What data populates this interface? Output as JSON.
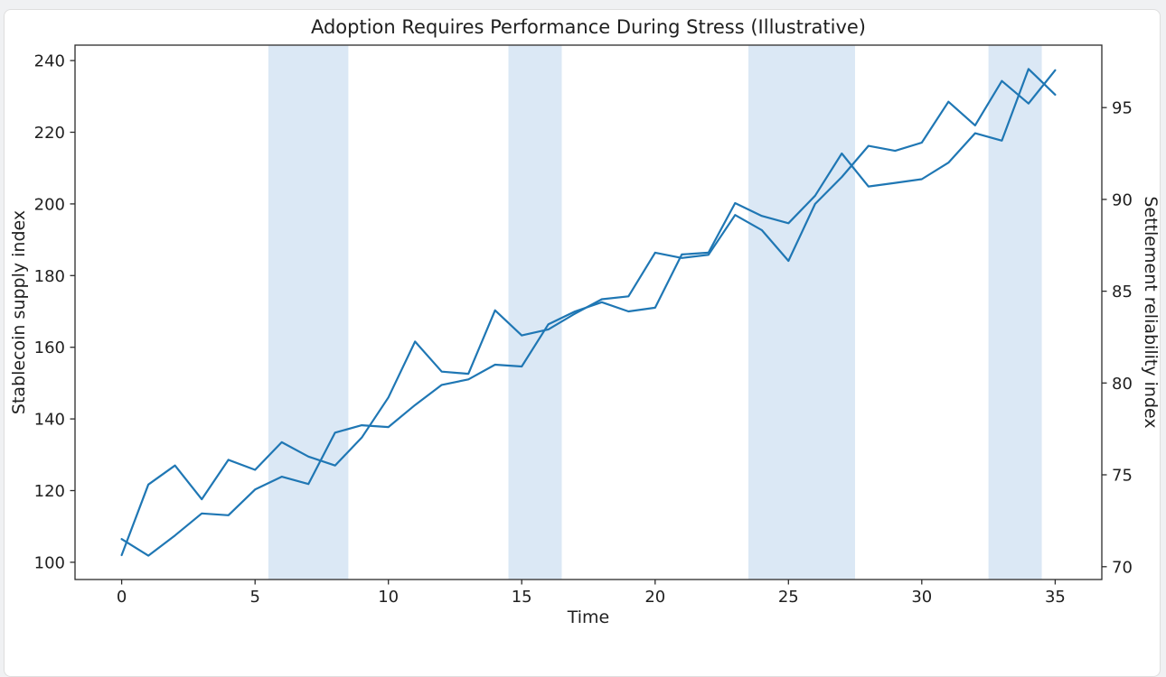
{
  "page": {
    "background": "#f0f1f3",
    "card_background": "#ffffff",
    "card_border": "#dedede"
  },
  "chart_data": {
    "type": "line",
    "title": "Adoption Requires Performance During Stress (Illustrative)",
    "xlabel": "Time",
    "ylabel_left": "Stablecoin supply index",
    "ylabel_right": "Settlement reliability index",
    "x": [
      0,
      1,
      2,
      3,
      4,
      5,
      6,
      7,
      8,
      9,
      10,
      11,
      12,
      13,
      14,
      15,
      16,
      17,
      18,
      19,
      20,
      21,
      22,
      23,
      24,
      25,
      26,
      27,
      28,
      29,
      30,
      31,
      32,
      33,
      34,
      35
    ],
    "series": [
      {
        "name": "Stablecoin supply index",
        "axis": "left",
        "color": "#1f77b4",
        "values": [
          102,
          121.7,
          127,
          117.6,
          128.6,
          125.8,
          133.5,
          129.5,
          127,
          134.8,
          146,
          161.6,
          153.2,
          152.6,
          170.3,
          163.3,
          165,
          169.4,
          173.4,
          174.2,
          186.4,
          184.9,
          185.8,
          196.9,
          192.7,
          184.1,
          200,
          207.5,
          216.2,
          214.8,
          217.1,
          228.5,
          221.9,
          234.3,
          228,
          237.3
        ]
      },
      {
        "name": "Settlement reliability index",
        "axis": "right",
        "color": "#1f77b4",
        "values": [
          71.5,
          70.6,
          71.7,
          72.9,
          72.8,
          74.2,
          74.9,
          74.5,
          77.3,
          77.7,
          77.6,
          78.8,
          79.9,
          80.2,
          81,
          80.9,
          83.2,
          83.9,
          84.4,
          83.9,
          84.1,
          87,
          87.1,
          89.8,
          89.1,
          88.7,
          90.2,
          92.5,
          90.7,
          90.9,
          91.1,
          92,
          93.6,
          93.2,
          97.1,
          95.7
        ]
      }
    ],
    "stress_windows": [
      [
        5.5,
        8.5
      ],
      [
        14.5,
        16.5
      ],
      [
        23.5,
        27.5
      ],
      [
        32.5,
        34.5
      ]
    ],
    "stress_band_color": "#dbe8f5",
    "xticks": [
      0,
      5,
      10,
      15,
      20,
      25,
      30,
      35
    ],
    "yticks_left": [
      100,
      120,
      140,
      160,
      180,
      200,
      220,
      240
    ],
    "yticks_right": [
      70,
      75,
      80,
      85,
      90,
      95
    ],
    "xlim": [
      -1.75,
      36.75
    ],
    "ylim_left": [
      95.2,
      244.3
    ],
    "ylim_right": [
      69.3,
      98.4
    ],
    "grid": false,
    "legend": "none",
    "line_width": 2.2,
    "axis_color": "#2b2b2b",
    "text_color": "#1f1f1f"
  }
}
